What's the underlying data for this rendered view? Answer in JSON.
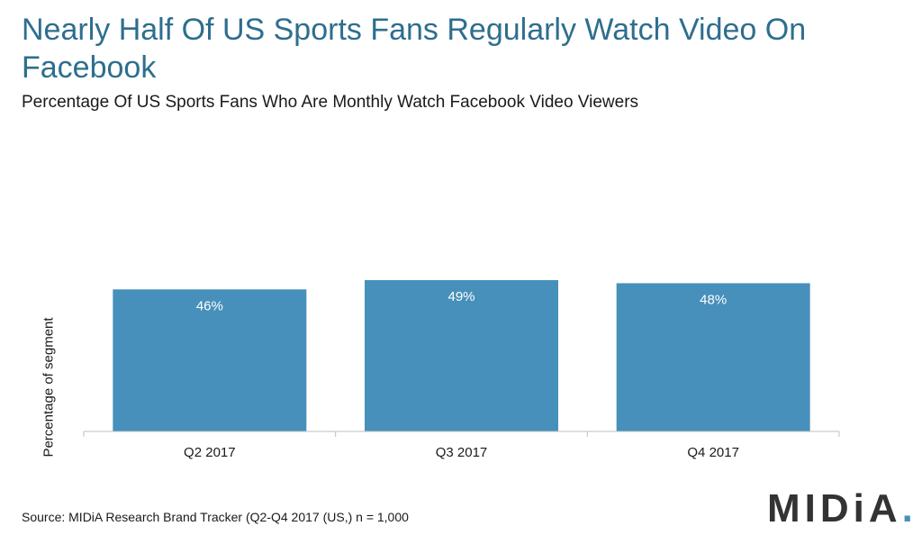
{
  "title": "Nearly Half Of US Sports Fans Regularly Watch Video On Facebook",
  "subtitle": "Percentage Of US Sports Fans Who Are Monthly Watch  Facebook  Video Viewers",
  "source": "Source: MIDiA Research Brand Tracker (Q2-Q4 2017 (US,) n = 1,000",
  "logo": {
    "text": "MIDiA",
    "dot": "."
  },
  "colors": {
    "bar": "#4790bb",
    "title": "#2e6e8e",
    "axis": "#bfbfbf"
  },
  "chart_data": {
    "type": "bar",
    "categories": [
      "Q2 2017",
      "Q3 2017",
      "Q4 2017"
    ],
    "values": [
      46,
      49,
      48
    ],
    "data_labels": [
      "46%",
      "49%",
      "48%"
    ],
    "ylabel": "Percentage of segment",
    "ylim": [
      0,
      100
    ],
    "grid": false,
    "legend": "none"
  }
}
